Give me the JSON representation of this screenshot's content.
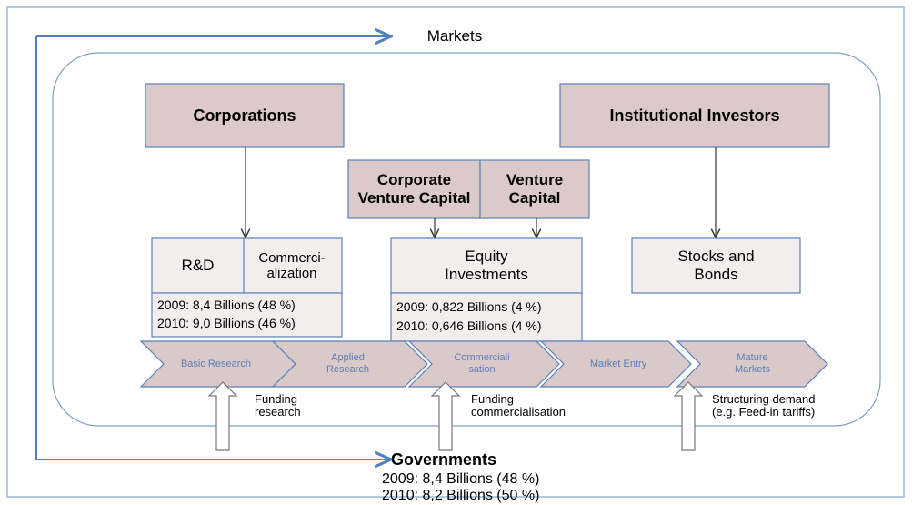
{
  "markets": "Markets",
  "sources": [
    {
      "label": "Corporations"
    },
    {
      "label": "Institutional Investors"
    },
    {
      "label": "Corporate Venture Capital"
    },
    {
      "label": "Venture Capital"
    }
  ],
  "instruments": [
    {
      "labels": [
        "R&D",
        "Commerci-alization"
      ],
      "figures": [
        "2009: 8,4 Billions (48 %)",
        "2010: 9,0 Billions (46 %)"
      ]
    },
    {
      "labels": [
        "Equity Investments"
      ],
      "figures": [
        "2009: 0,822 Billions (4 %)",
        "2010: 0,646 Billions (4 %)"
      ]
    },
    {
      "labels": [
        "Stocks and Bonds"
      ]
    }
  ],
  "stages": [
    "Basic Research",
    "Applied Research",
    "Commerciali sation",
    "Market Entry",
    "Mature Markets"
  ],
  "supports": [
    "Funding research",
    "Funding commercialisation",
    "Structuring demand (e.g. Feed-in tariffs)"
  ],
  "governments": {
    "label": "Governments",
    "figures": [
      "2009: 8,4 Billions (48 %)",
      "2010: 8,2 Billions (50 %)"
    ]
  }
}
